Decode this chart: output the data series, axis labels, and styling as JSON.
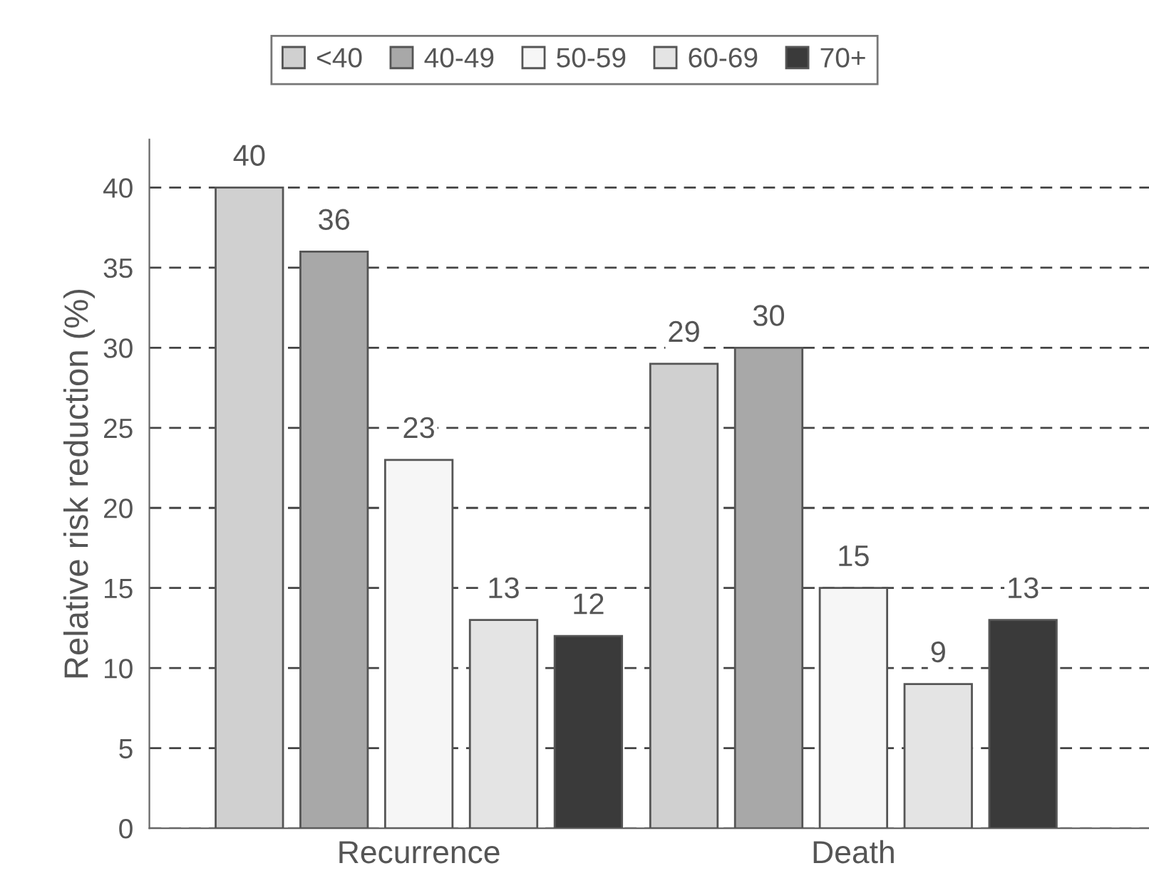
{
  "chart_data": {
    "type": "bar",
    "ylabel": "Relative risk reduction (%)",
    "categories": [
      "Recurrence",
      "Death"
    ],
    "series": [
      {
        "name": "<40",
        "color": "#d0d0d0",
        "values": [
          40,
          29
        ]
      },
      {
        "name": "40-49",
        "color": "#a8a8a8",
        "values": [
          36,
          30
        ]
      },
      {
        "name": "50-59",
        "color": "#f6f6f6",
        "values": [
          23,
          15
        ]
      },
      {
        "name": "60-69",
        "color": "#e4e4e4",
        "values": [
          13,
          9
        ]
      },
      {
        "name": "70+",
        "color": "#3a3a3a",
        "values": [
          12,
          13
        ]
      }
    ],
    "ylim": [
      0,
      43
    ],
    "yticks": [
      0,
      5,
      10,
      15,
      20,
      25,
      30,
      35,
      40
    ],
    "grid": "y",
    "legend": "top",
    "data_labels": true
  }
}
